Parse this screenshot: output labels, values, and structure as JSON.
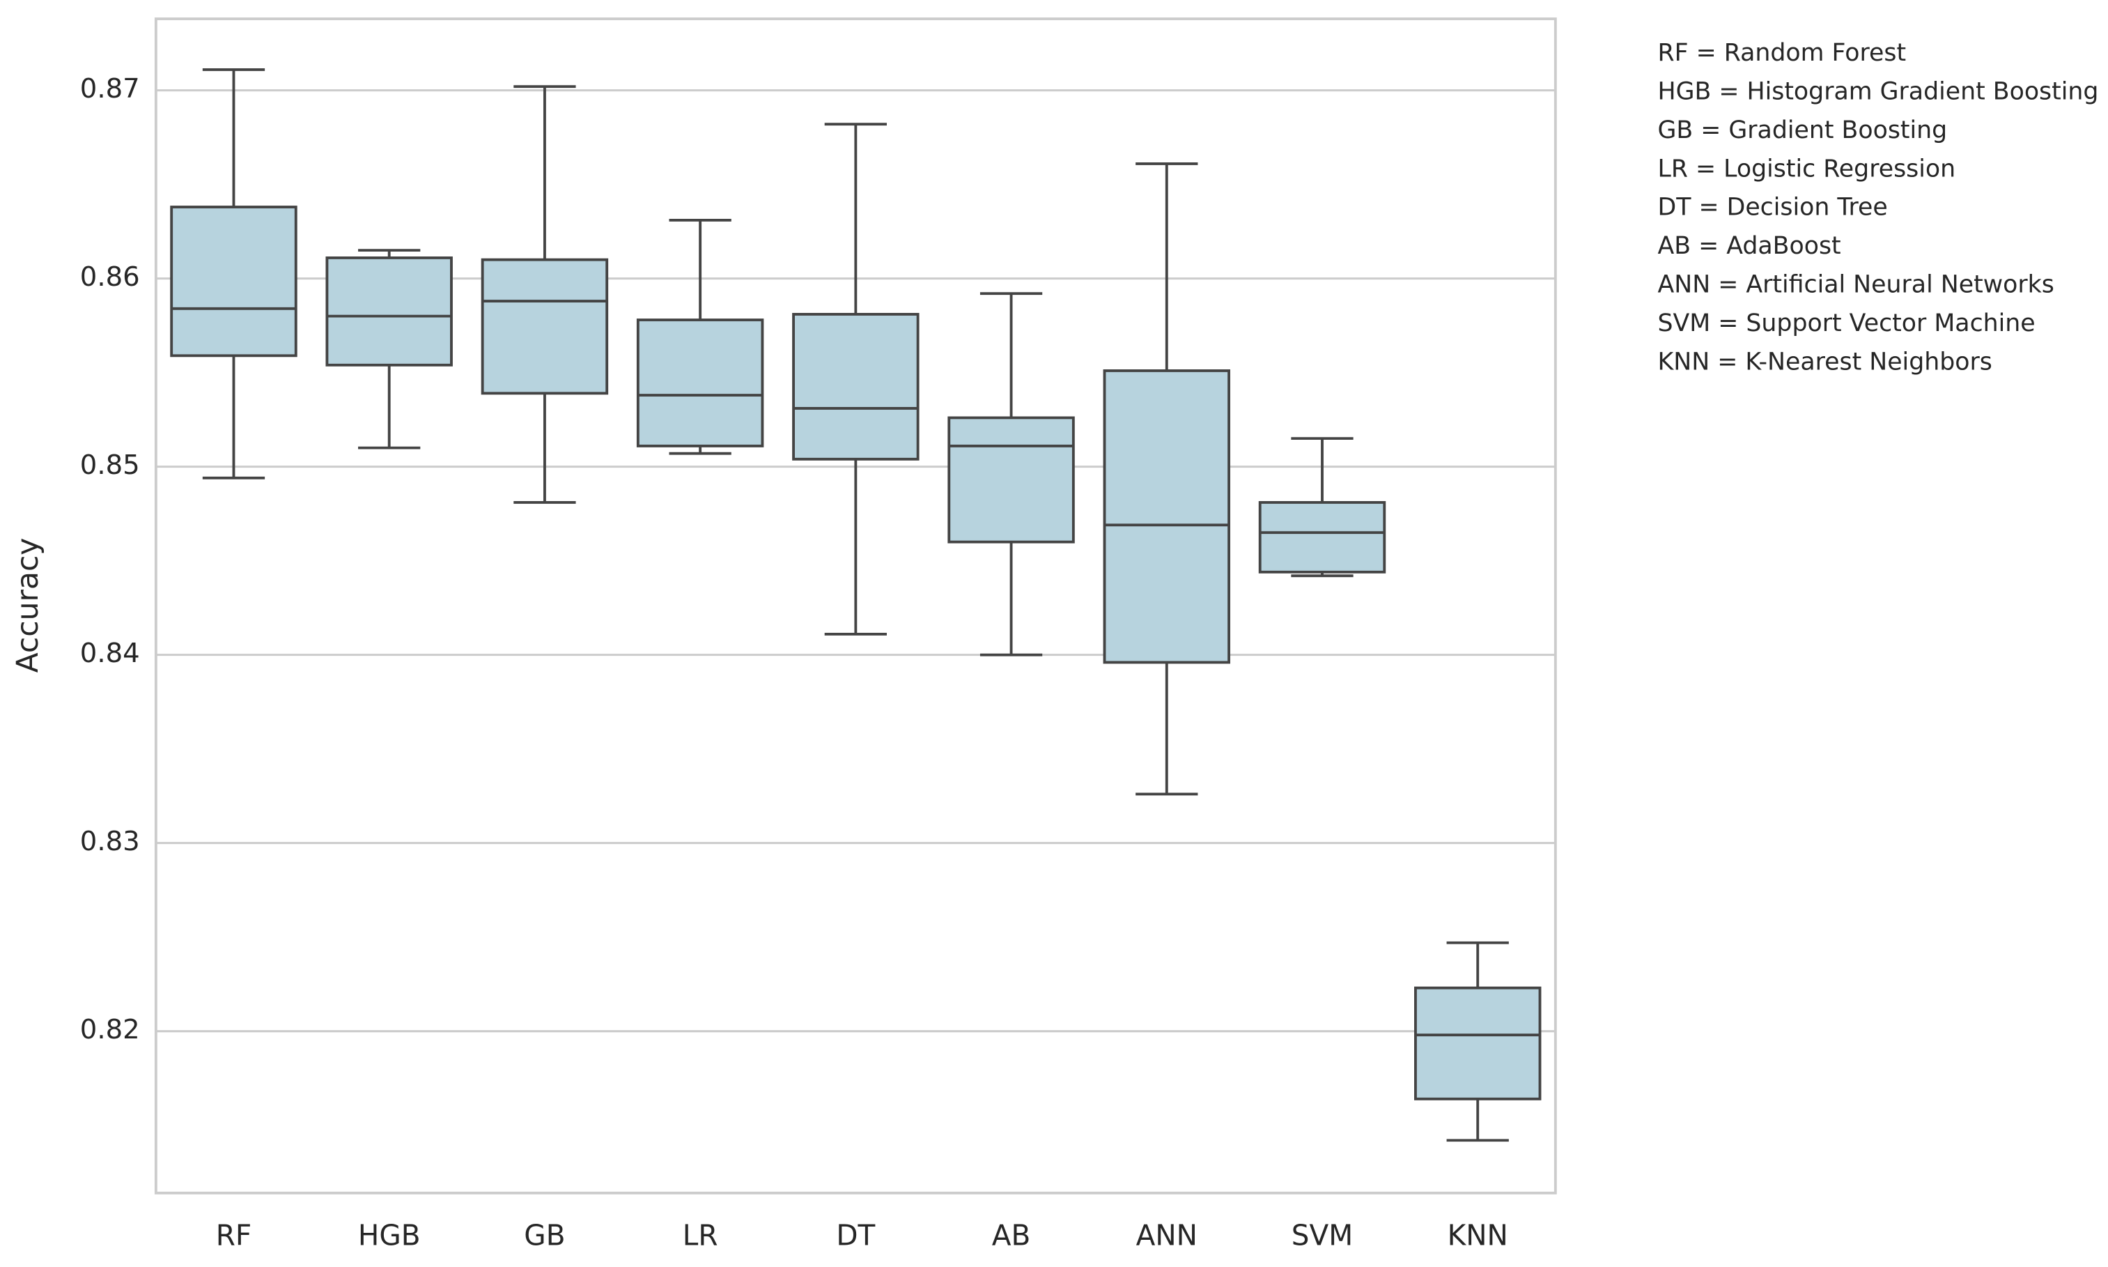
{
  "chart_data": {
    "type": "box",
    "ylabel": "Accuracy",
    "categories": [
      "RF",
      "HGB",
      "GB",
      "LR",
      "DT",
      "AB",
      "ANN",
      "SVM",
      "KNN"
    ],
    "boxes": [
      {
        "whislo": 0.8494,
        "q1": 0.8559,
        "med": 0.8584,
        "q3": 0.8638,
        "whishi": 0.8711
      },
      {
        "whislo": 0.851,
        "q1": 0.8554,
        "med": 0.858,
        "q3": 0.8611,
        "whishi": 0.8615
      },
      {
        "whislo": 0.8481,
        "q1": 0.8539,
        "med": 0.8588,
        "q3": 0.861,
        "whishi": 0.8702
      },
      {
        "whislo": 0.8507,
        "q1": 0.8511,
        "med": 0.8538,
        "q3": 0.8578,
        "whishi": 0.8631
      },
      {
        "whislo": 0.8411,
        "q1": 0.8504,
        "med": 0.8531,
        "q3": 0.8581,
        "whishi": 0.8682
      },
      {
        "whislo": 0.84,
        "q1": 0.846,
        "med": 0.8511,
        "q3": 0.8526,
        "whishi": 0.8592
      },
      {
        "whislo": 0.8326,
        "q1": 0.8396,
        "med": 0.8469,
        "q3": 0.8551,
        "whishi": 0.8661
      },
      {
        "whislo": 0.8442,
        "q1": 0.8444,
        "med": 0.8465,
        "q3": 0.8481,
        "whishi": 0.8515
      },
      {
        "whislo": 0.8142,
        "q1": 0.8164,
        "med": 0.8198,
        "q3": 0.8223,
        "whishi": 0.8247
      }
    ],
    "color": "#b7d3de",
    "edgecolor": "#444444",
    "ylim": [
      0.8114,
      0.8738
    ],
    "yticks": [
      0.82,
      0.83,
      0.84,
      0.85,
      0.86,
      0.87
    ],
    "grid": true,
    "notes": [
      "RF = Random Forest",
      "HGB = Histogram Gradient Boosting",
      "GB = Gradient Boosting",
      "LR = Logistic Regression",
      "DT = Decision Tree",
      "AB = AdaBoost",
      "ANN = Artificial Neural Networks",
      "SVM = Support Vector Machine",
      "KNN = K-Nearest Neighbors"
    ]
  }
}
